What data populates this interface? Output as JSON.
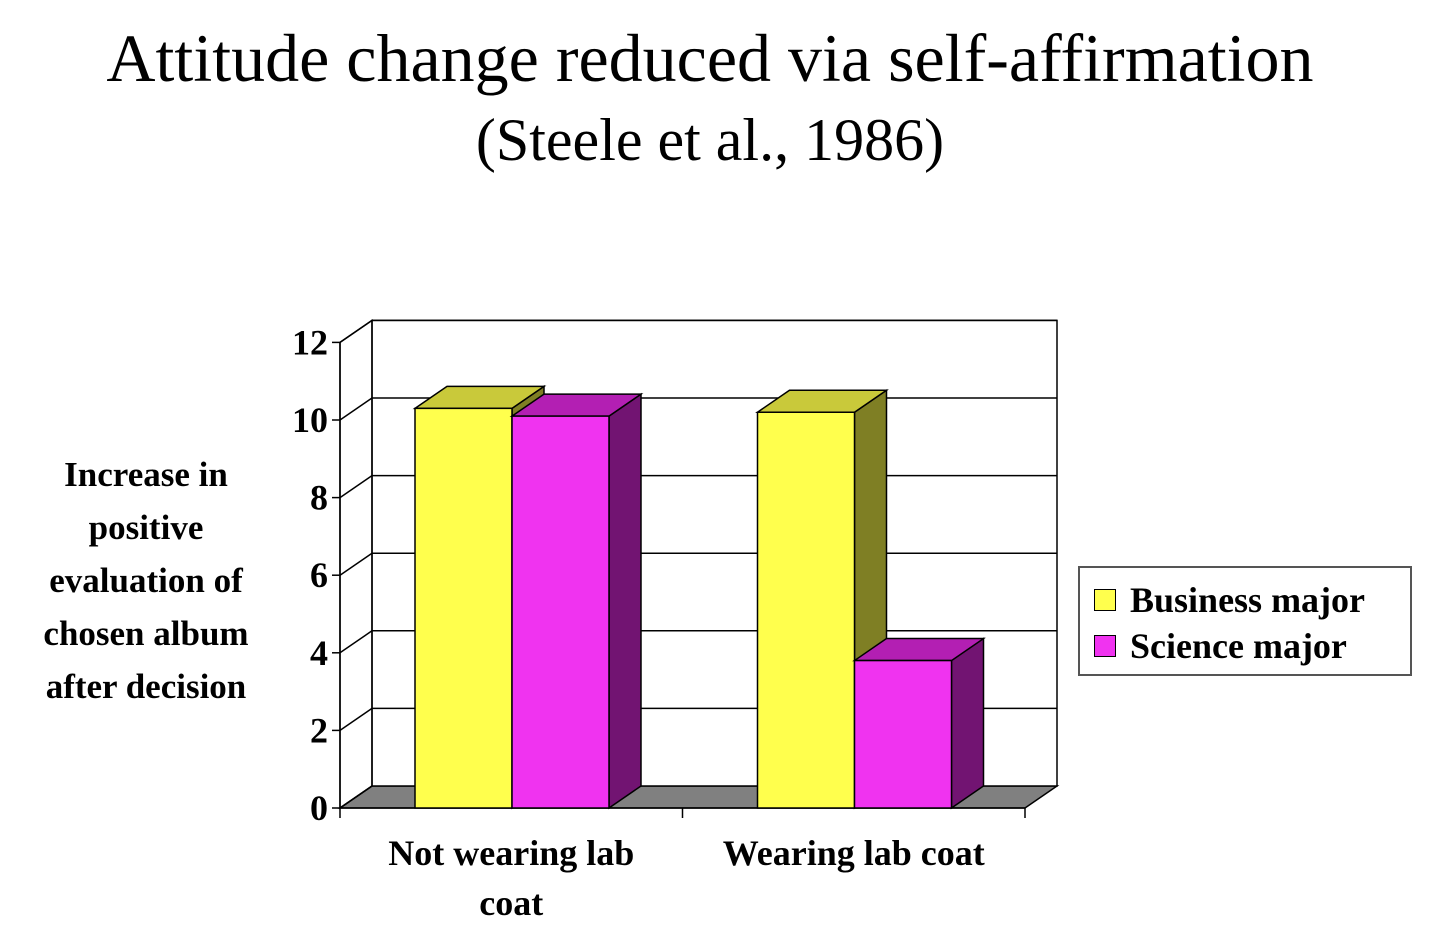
{
  "chart_data": {
    "type": "bar",
    "title": "Attitude change reduced via self-affirmation",
    "subtitle": "(Steele et al., 1986)",
    "ylabel": "Increase in positive evaluation of chosen album after decision",
    "xlabel": "",
    "categories": [
      [
        "Not wearing lab",
        "coat"
      ],
      [
        "Wearing lab coat"
      ]
    ],
    "series": [
      {
        "name": "Business major",
        "values": [
          10.3,
          10.2
        ],
        "color": "#ffff4d",
        "side_color": "#7f7f24",
        "top_color": "#c9c93a"
      },
      {
        "name": "Science major",
        "values": [
          10.1,
          3.8
        ],
        "color": "#f033f0",
        "side_color": "#721472",
        "top_color": "#b31fb3"
      }
    ],
    "yticks": [
      "0",
      "2",
      "4",
      "6",
      "8",
      "10",
      "12"
    ],
    "ylim": [
      0,
      12
    ],
    "grid": true,
    "legend": "right"
  }
}
